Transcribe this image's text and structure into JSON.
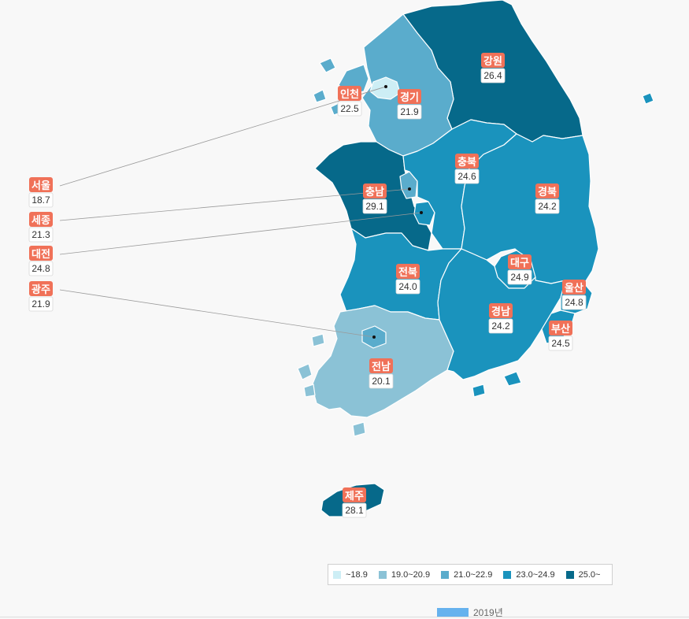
{
  "colors": {
    "c1": "#cdeef5",
    "c2": "#8bc2d6",
    "c3": "#5aaccc",
    "c4": "#1a93bd",
    "c5": "#06698a",
    "label": "#f07158"
  },
  "regions": [
    {
      "key": "gangwon",
      "name": "강원",
      "value": "26.4",
      "class": "c5"
    },
    {
      "key": "gyeonggi",
      "name": "경기",
      "value": "21.9",
      "class": "c3"
    },
    {
      "key": "incheon",
      "name": "인천",
      "value": "22.5",
      "class": "c3"
    },
    {
      "key": "seoul",
      "name": "서울",
      "value": "18.7",
      "class": "c1"
    },
    {
      "key": "chungbuk",
      "name": "충북",
      "value": "24.6",
      "class": "c4"
    },
    {
      "key": "chungnam",
      "name": "충남",
      "value": "29.1",
      "class": "c5"
    },
    {
      "key": "sejong",
      "name": "세종",
      "value": "21.3",
      "class": "c3"
    },
    {
      "key": "daejeon",
      "name": "대전",
      "value": "24.8",
      "class": "c4"
    },
    {
      "key": "gyeongbuk",
      "name": "경북",
      "value": "24.2",
      "class": "c4"
    },
    {
      "key": "daegu",
      "name": "대구",
      "value": "24.9",
      "class": "c4"
    },
    {
      "key": "jeonbuk",
      "name": "전북",
      "value": "24.0",
      "class": "c4"
    },
    {
      "key": "gwangju",
      "name": "광주",
      "value": "21.9",
      "class": "c3"
    },
    {
      "key": "jeonnam",
      "name": "전남",
      "value": "20.1",
      "class": "c2"
    },
    {
      "key": "gyeongnam",
      "name": "경남",
      "value": "24.2",
      "class": "c4"
    },
    {
      "key": "ulsan",
      "name": "울산",
      "value": "24.8",
      "class": "c4"
    },
    {
      "key": "busan",
      "name": "부산",
      "value": "24.5",
      "class": "c4"
    },
    {
      "key": "jeju",
      "name": "제주",
      "value": "28.1",
      "class": "c5"
    }
  ],
  "legend": [
    {
      "label": "~18.9",
      "color": "#cdeef5"
    },
    {
      "label": "19.0~20.9",
      "color": "#8bc2d6"
    },
    {
      "label": "21.0~22.9",
      "color": "#5aaccc"
    },
    {
      "label": "23.0~24.9",
      "color": "#1a93bd"
    },
    {
      "label": "25.0~",
      "color": "#06698a"
    }
  ],
  "series": {
    "label": "2019년",
    "color": "#66b2ee"
  }
}
